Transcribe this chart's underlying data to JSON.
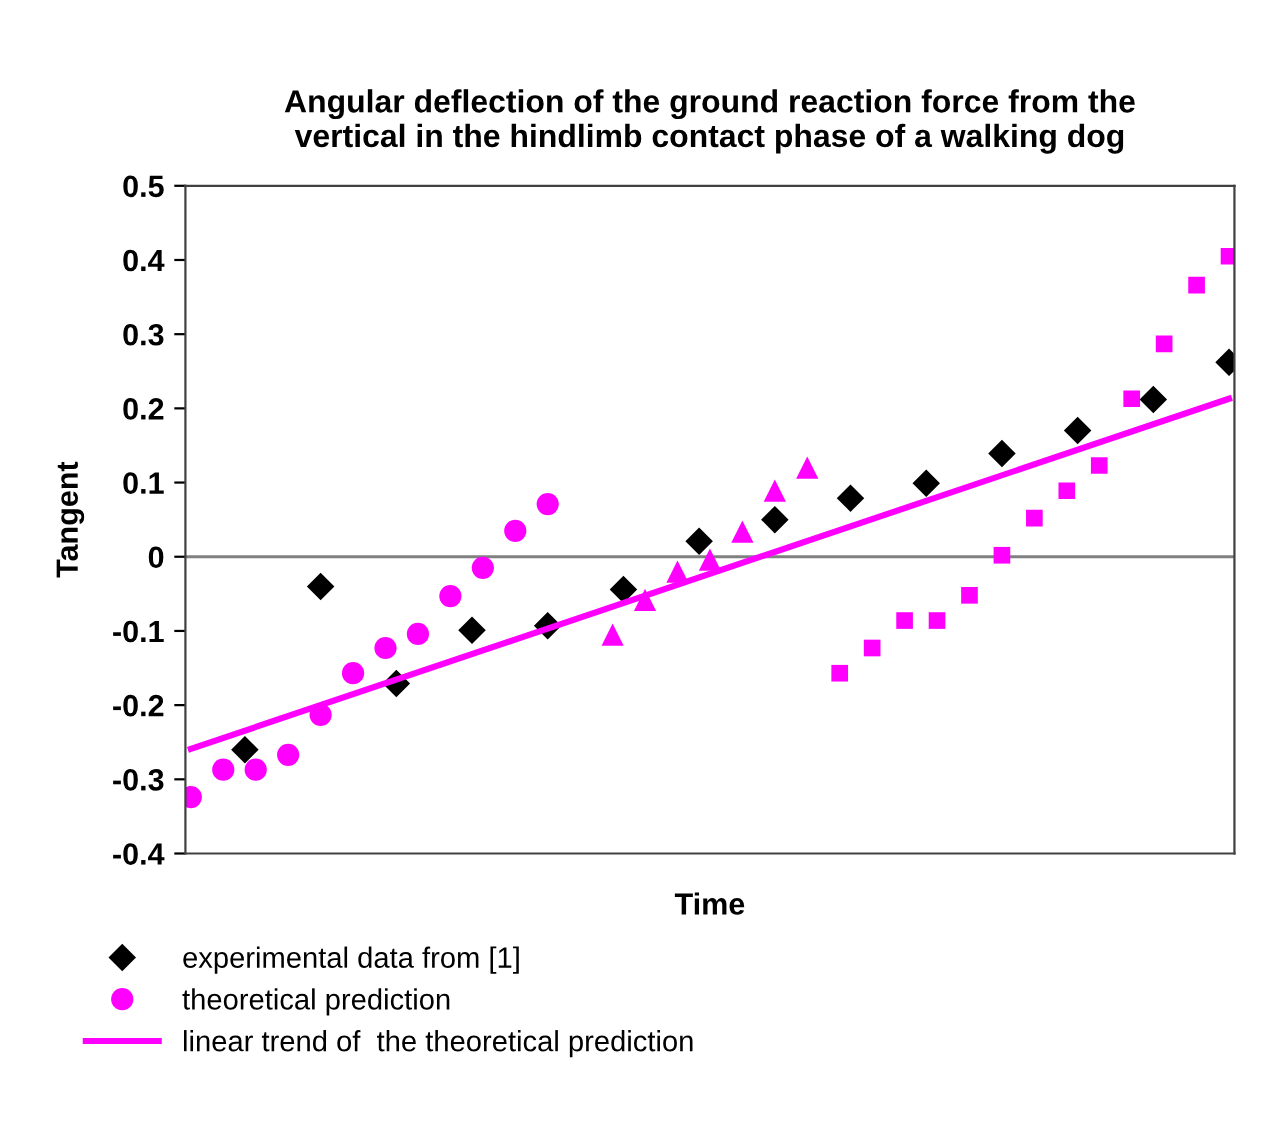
{
  "chart_data": {
    "type": "scatter",
    "title": "Angular deflection of the ground reaction force from the\nvertical in the hindlimb contact phase of a walking dog",
    "xlabel": "Time",
    "ylabel": "Tangent",
    "categories": [
      null,
      null,
      null,
      null,
      null,
      null,
      null,
      null,
      null,
      null,
      null,
      null,
      null,
      null,
      null,
      null,
      null,
      null,
      null,
      null,
      null,
      null,
      null,
      null,
      null,
      null,
      null,
      null,
      null,
      null,
      null,
      null,
      null,
      null,
      null,
      null,
      null,
      null,
      null,
      null,
      null,
      null,
      null,
      null,
      null,
      null,
      null,
      null,
      null,
      null,
      null,
      null,
      null,
      null,
      null,
      null,
      null,
      null,
      null,
      null,
      null,
      null,
      null,
      null,
      null,
      null,
      null,
      null,
      null,
      null,
      null,
      null,
      null,
      null,
      null,
      null,
      null,
      null,
      null,
      null,
      null,
      null,
      null,
      null,
      null,
      null,
      null,
      null,
      null,
      null,
      null,
      null,
      null,
      null,
      null,
      null,
      null
    ],
    "ylim": [
      -0.4,
      0.5
    ],
    "yticks": [
      -0.4,
      -0.3,
      -0.2,
      -0.1,
      0,
      0.1,
      0.2,
      0.3,
      0.4,
      0.5
    ],
    "tick_labels": "y",
    "grid": false,
    "legend": "bottom",
    "ref_lines": [
      {
        "axis": "y",
        "value": 0,
        "color": "#808080"
      }
    ],
    "series": [
      {
        "name": "experimental data from [1]",
        "color": "#000000",
        "marker": "diamond",
        "values": [
          null,
          null,
          null,
          null,
          null,
          -0.26,
          null,
          null,
          null,
          null,
          null,
          null,
          -0.04,
          null,
          null,
          null,
          null,
          null,
          null,
          -0.171,
          null,
          null,
          null,
          null,
          null,
          null,
          -0.099,
          null,
          null,
          null,
          null,
          null,
          null,
          -0.093,
          null,
          null,
          null,
          null,
          null,
          null,
          -0.044,
          null,
          null,
          null,
          null,
          null,
          null,
          0.021,
          null,
          null,
          null,
          null,
          null,
          null,
          0.05,
          null,
          null,
          null,
          null,
          null,
          null,
          0.079,
          null,
          null,
          null,
          null,
          null,
          null,
          0.099,
          null,
          null,
          null,
          null,
          null,
          null,
          0.139,
          null,
          null,
          null,
          null,
          null,
          null,
          0.17,
          null,
          null,
          null,
          null,
          null,
          null,
          0.212,
          null,
          null,
          null,
          null,
          null,
          null,
          0.262
        ]
      },
      {
        "name": "theoretical prediction",
        "color": "#ff00ff",
        "marker": "circle",
        "values": [
          -0.324,
          null,
          null,
          -0.287,
          null,
          null,
          -0.287,
          null,
          null,
          -0.267,
          null,
          null,
          -0.213,
          null,
          null,
          -0.157,
          null,
          null,
          -0.123,
          null,
          null,
          -0.104,
          null,
          null,
          -0.053,
          null,
          null,
          -0.015,
          null,
          null,
          0.035,
          null,
          null,
          0.071,
          null,
          null,
          null,
          null,
          null,
          null,
          null,
          null,
          null,
          null,
          null,
          null,
          null,
          null,
          null,
          null,
          null,
          null,
          null,
          null,
          null,
          null,
          null,
          null,
          null,
          null,
          null,
          null,
          null,
          null,
          null,
          null,
          null,
          null,
          null,
          null,
          null,
          null,
          null,
          null,
          null,
          null,
          null,
          null,
          null,
          null,
          null,
          null,
          null,
          null,
          null,
          null,
          null,
          null,
          null,
          null,
          null,
          null,
          null,
          null,
          null,
          null,
          null
        ]
      },
      {
        "color": "#ff00ff",
        "marker": "triangle",
        "values": [
          null,
          null,
          null,
          null,
          null,
          null,
          null,
          null,
          null,
          null,
          null,
          null,
          null,
          null,
          null,
          null,
          null,
          null,
          null,
          null,
          null,
          null,
          null,
          null,
          null,
          null,
          null,
          null,
          null,
          null,
          null,
          null,
          null,
          null,
          null,
          null,
          null,
          null,
          null,
          -0.105,
          null,
          null,
          -0.058,
          null,
          null,
          -0.02,
          null,
          null,
          -0.004,
          null,
          null,
          0.034,
          null,
          null,
          0.089,
          null,
          null,
          0.12,
          null,
          null,
          null,
          null,
          null,
          null,
          null,
          null,
          null,
          null,
          null,
          null,
          null,
          null,
          null,
          null,
          null,
          null,
          null,
          null,
          null,
          null,
          null,
          null,
          null,
          null,
          null,
          null,
          null,
          null,
          null,
          null,
          null,
          null,
          null,
          null,
          null,
          null,
          null
        ]
      },
      {
        "color": "#ff00ff",
        "marker": "square",
        "values": [
          null,
          null,
          null,
          null,
          null,
          null,
          null,
          null,
          null,
          null,
          null,
          null,
          null,
          null,
          null,
          null,
          null,
          null,
          null,
          null,
          null,
          null,
          null,
          null,
          null,
          null,
          null,
          null,
          null,
          null,
          null,
          null,
          null,
          null,
          null,
          null,
          null,
          null,
          null,
          null,
          null,
          null,
          null,
          null,
          null,
          null,
          null,
          null,
          null,
          null,
          null,
          null,
          null,
          null,
          null,
          null,
          null,
          null,
          null,
          null,
          -0.157,
          null,
          null,
          -0.123,
          null,
          null,
          -0.086,
          null,
          null,
          -0.086,
          null,
          null,
          -0.052,
          null,
          null,
          0.002,
          null,
          null,
          0.052,
          null,
          null,
          0.089,
          null,
          null,
          0.123,
          null,
          null,
          0.213,
          null,
          null,
          0.287,
          null,
          null,
          0.366,
          null,
          null,
          0.405
        ]
      },
      {
        "name": "linear trend of  the theoretical prediction",
        "type": "line",
        "color": "#ff00ff",
        "marker": "none",
        "line_style": "solid",
        "values": [
          -0.259,
          null,
          null,
          null,
          null,
          null,
          null,
          null,
          null,
          null,
          null,
          null,
          null,
          null,
          null,
          null,
          null,
          null,
          null,
          null,
          null,
          null,
          null,
          null,
          null,
          null,
          null,
          null,
          null,
          null,
          null,
          null,
          null,
          null,
          null,
          null,
          null,
          null,
          null,
          null,
          null,
          null,
          null,
          null,
          null,
          null,
          null,
          null,
          null,
          null,
          null,
          null,
          null,
          null,
          null,
          null,
          null,
          null,
          null,
          null,
          null,
          null,
          null,
          null,
          null,
          null,
          null,
          null,
          null,
          null,
          null,
          null,
          null,
          null,
          null,
          null,
          null,
          null,
          null,
          null,
          null,
          null,
          null,
          null,
          null,
          null,
          null,
          null,
          null,
          null,
          null,
          null,
          null,
          null,
          null,
          null,
          0.213
        ]
      }
    ]
  }
}
